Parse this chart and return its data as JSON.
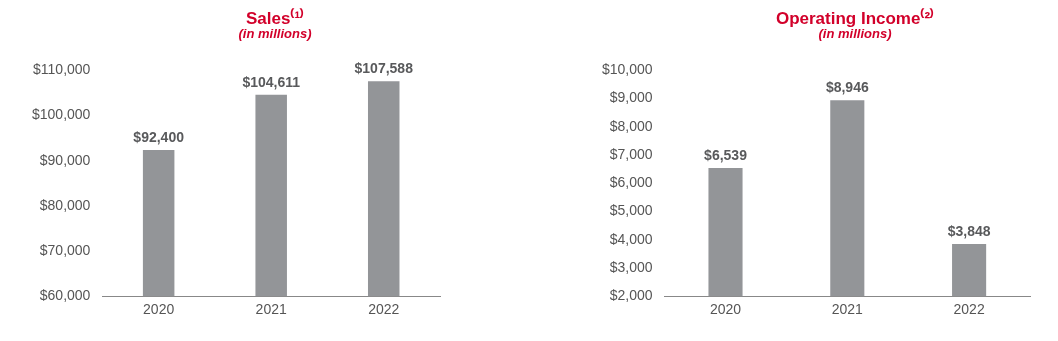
{
  "chart_data": [
    {
      "type": "bar",
      "title": "Sales⁽¹⁾",
      "subtitle": "(in millions)",
      "categories": [
        "2020",
        "2021",
        "2022"
      ],
      "values": [
        92400,
        104611,
        107588
      ],
      "color": "#939598",
      "ylim": [
        60000,
        110000
      ],
      "yticks": [
        {
          "value": 60000,
          "label": "$60,000"
        },
        {
          "value": 70000,
          "label": "$70,000"
        },
        {
          "value": 80000,
          "label": "$80,000"
        },
        {
          "value": 90000,
          "label": "$90,000"
        },
        {
          "value": 100000,
          "label": "$100,000"
        },
        {
          "value": 110000,
          "label": "$110,000"
        }
      ],
      "value_labels": [
        "$92,400",
        "$104,611",
        "$107,588"
      ],
      "grid": false,
      "legend": false
    },
    {
      "type": "bar",
      "title": "Operating Income⁽²⁾",
      "subtitle": "(in millions)",
      "categories": [
        "2020",
        "2021",
        "2022"
      ],
      "values": [
        6539,
        8946,
        3848
      ],
      "color": "#939598",
      "ylim": [
        2000,
        10000
      ],
      "yticks": [
        {
          "value": 2000,
          "label": "$2,000"
        },
        {
          "value": 3000,
          "label": "$3,000"
        },
        {
          "value": 4000,
          "label": "$4,000"
        },
        {
          "value": 5000,
          "label": "$5,000"
        },
        {
          "value": 6000,
          "label": "$6,000"
        },
        {
          "value": 7000,
          "label": "$7,000"
        },
        {
          "value": 8000,
          "label": "$8,000"
        },
        {
          "value": 9000,
          "label": "$9,000"
        },
        {
          "value": 10000,
          "label": "$10,000"
        }
      ],
      "value_labels": [
        "$6,539",
        "$8,946",
        "$3,848"
      ],
      "grid": false,
      "legend": false
    }
  ]
}
